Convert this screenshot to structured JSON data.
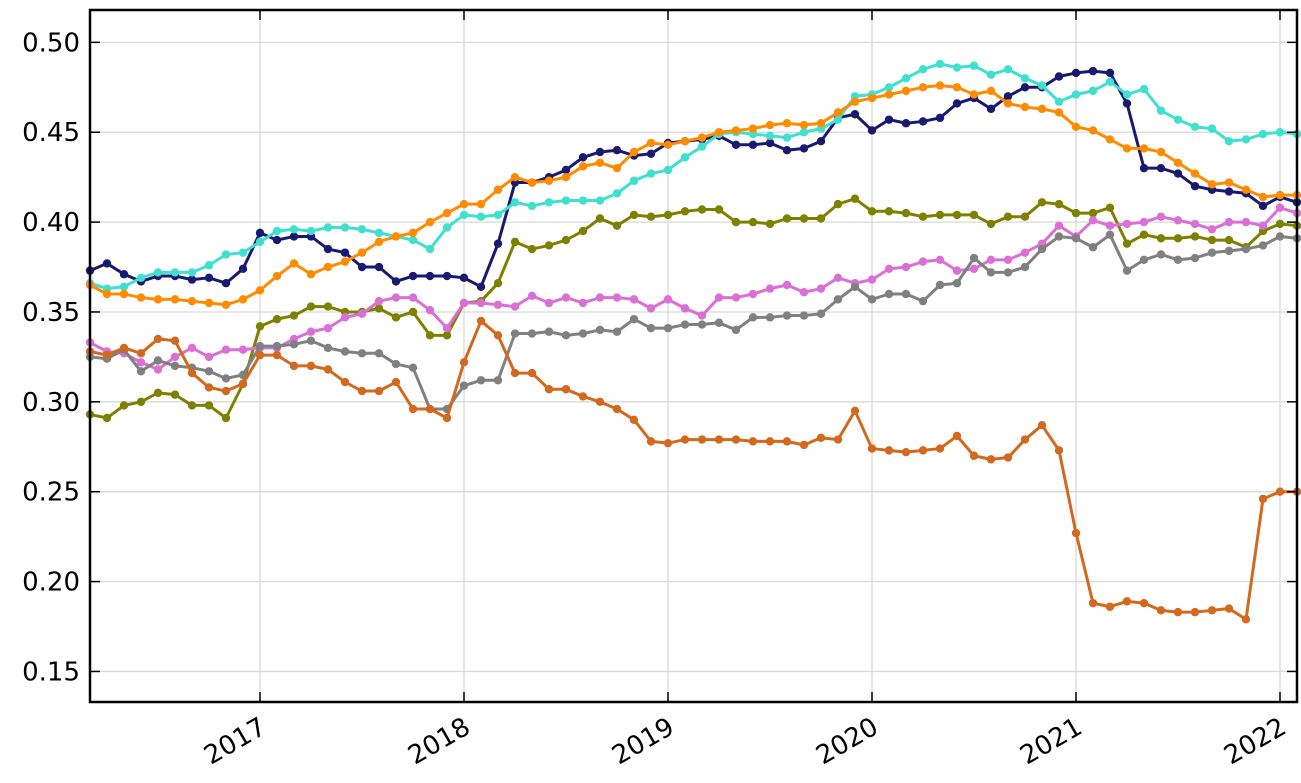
{
  "chart_data": {
    "type": "line",
    "x": [
      "2016-03",
      "2016-04",
      "2016-05",
      "2016-06",
      "2016-07",
      "2016-08",
      "2016-09",
      "2016-10",
      "2016-11",
      "2016-12",
      "2017-01",
      "2017-02",
      "2017-03",
      "2017-04",
      "2017-05",
      "2017-06",
      "2017-07",
      "2017-08",
      "2017-09",
      "2017-10",
      "2017-11",
      "2017-12",
      "2018-01",
      "2018-02",
      "2018-03",
      "2018-04",
      "2018-05",
      "2018-06",
      "2018-07",
      "2018-08",
      "2018-09",
      "2018-10",
      "2018-11",
      "2018-12",
      "2019-01",
      "2019-02",
      "2019-03",
      "2019-04",
      "2019-05",
      "2019-06",
      "2019-07",
      "2019-08",
      "2019-09",
      "2019-10",
      "2019-11",
      "2019-12",
      "2020-01",
      "2020-02",
      "2020-03",
      "2020-04",
      "2020-05",
      "2020-06",
      "2020-07",
      "2020-08",
      "2020-09",
      "2020-10",
      "2020-11",
      "2020-12",
      "2021-01",
      "2021-02",
      "2021-03",
      "2021-04",
      "2021-05",
      "2021-06",
      "2021-07",
      "2021-08",
      "2021-09",
      "2021-10",
      "2021-11",
      "2021-12",
      "2022-01",
      "2022-02"
    ],
    "xlim": [
      "2016-03",
      "2022-02"
    ],
    "xticks": [
      {
        "value": "2017-01",
        "label": "2017"
      },
      {
        "value": "2018-01",
        "label": "2018"
      },
      {
        "value": "2019-01",
        "label": "2019"
      },
      {
        "value": "2020-01",
        "label": "2020"
      },
      {
        "value": "2021-01",
        "label": "2021"
      },
      {
        "value": "2022-01",
        "label": "2022"
      }
    ],
    "ylim": [
      0.133,
      0.518
    ],
    "yticks": [
      {
        "value": 0.15,
        "label": "0.15"
      },
      {
        "value": 0.2,
        "label": "0.20"
      },
      {
        "value": 0.25,
        "label": "0.25"
      },
      {
        "value": 0.3,
        "label": "0.30"
      },
      {
        "value": 0.35,
        "label": "0.35"
      },
      {
        "value": 0.4,
        "label": "0.40"
      },
      {
        "value": 0.45,
        "label": "0.45"
      },
      {
        "value": 0.5,
        "label": "0.50"
      }
    ],
    "grid": true,
    "series": [
      {
        "color": "#191970",
        "values": [
          0.373,
          0.377,
          0.371,
          0.367,
          0.37,
          0.37,
          0.368,
          0.369,
          0.366,
          0.374,
          0.394,
          0.39,
          0.392,
          0.392,
          0.385,
          0.383,
          0.375,
          0.375,
          0.367,
          0.37,
          0.37,
          0.37,
          0.369,
          0.364,
          0.388,
          0.422,
          0.422,
          0.425,
          0.429,
          0.436,
          0.439,
          0.44,
          0.437,
          0.438,
          0.444,
          0.445,
          0.446,
          0.448,
          0.443,
          0.443,
          0.444,
          0.44,
          0.441,
          0.445,
          0.458,
          0.46,
          0.451,
          0.457,
          0.455,
          0.456,
          0.458,
          0.466,
          0.469,
          0.463,
          0.47,
          0.475,
          0.475,
          0.481,
          0.483,
          0.484,
          0.483,
          0.466,
          0.43,
          0.43,
          0.427,
          0.42,
          0.418,
          0.417,
          0.416,
          0.409,
          0.414,
          0.411
        ]
      },
      {
        "color": "#40e0d0",
        "values": [
          0.366,
          0.363,
          0.364,
          0.369,
          0.372,
          0.372,
          0.372,
          0.376,
          0.382,
          0.383,
          0.389,
          0.395,
          0.396,
          0.395,
          0.397,
          0.397,
          0.396,
          0.394,
          0.392,
          0.39,
          0.385,
          0.397,
          0.404,
          0.403,
          0.404,
          0.411,
          0.409,
          0.411,
          0.412,
          0.412,
          0.412,
          0.416,
          0.423,
          0.427,
          0.429,
          0.436,
          0.442,
          0.449,
          0.45,
          0.449,
          0.448,
          0.447,
          0.45,
          0.452,
          0.457,
          0.47,
          0.471,
          0.475,
          0.48,
          0.485,
          0.488,
          0.486,
          0.487,
          0.482,
          0.485,
          0.48,
          0.476,
          0.467,
          0.471,
          0.473,
          0.478,
          0.471,
          0.474,
          0.462,
          0.457,
          0.453,
          0.452,
          0.445,
          0.446,
          0.449,
          0.45,
          0.449
        ]
      },
      {
        "color": "#ff8c00",
        "values": [
          0.365,
          0.36,
          0.36,
          0.358,
          0.357,
          0.357,
          0.356,
          0.355,
          0.354,
          0.357,
          0.362,
          0.37,
          0.377,
          0.371,
          0.375,
          0.378,
          0.383,
          0.389,
          0.392,
          0.394,
          0.4,
          0.405,
          0.41,
          0.41,
          0.418,
          0.425,
          0.422,
          0.423,
          0.425,
          0.431,
          0.433,
          0.43,
          0.439,
          0.444,
          0.443,
          0.445,
          0.447,
          0.45,
          0.451,
          0.452,
          0.454,
          0.455,
          0.454,
          0.455,
          0.461,
          0.467,
          0.469,
          0.471,
          0.473,
          0.475,
          0.476,
          0.475,
          0.471,
          0.473,
          0.466,
          0.464,
          0.463,
          0.461,
          0.453,
          0.451,
          0.446,
          0.441,
          0.441,
          0.439,
          0.433,
          0.427,
          0.421,
          0.422,
          0.418,
          0.414,
          0.415,
          0.415
        ]
      },
      {
        "color": "#808000",
        "values": [
          0.293,
          0.291,
          0.298,
          0.3,
          0.305,
          0.304,
          0.298,
          0.298,
          0.291,
          0.31,
          0.342,
          0.346,
          0.348,
          0.353,
          0.353,
          0.35,
          0.35,
          0.352,
          0.347,
          0.35,
          0.337,
          0.337,
          0.355,
          0.356,
          0.366,
          0.389,
          0.385,
          0.387,
          0.39,
          0.395,
          0.402,
          0.398,
          0.404,
          0.403,
          0.404,
          0.406,
          0.407,
          0.407,
          0.4,
          0.4,
          0.399,
          0.402,
          0.402,
          0.402,
          0.41,
          0.413,
          0.406,
          0.406,
          0.405,
          0.403,
          0.404,
          0.404,
          0.404,
          0.399,
          0.403,
          0.403,
          0.411,
          0.41,
          0.405,
          0.405,
          0.408,
          0.388,
          0.393,
          0.391,
          0.391,
          0.392,
          0.39,
          0.39,
          0.386,
          0.395,
          0.399,
          0.398
        ]
      },
      {
        "color": "#da70d6",
        "values": [
          0.333,
          0.328,
          0.327,
          0.322,
          0.318,
          0.325,
          0.33,
          0.325,
          0.329,
          0.329,
          0.33,
          0.33,
          0.335,
          0.339,
          0.341,
          0.347,
          0.349,
          0.356,
          0.358,
          0.358,
          0.351,
          0.341,
          0.355,
          0.355,
          0.354,
          0.353,
          0.359,
          0.355,
          0.358,
          0.355,
          0.358,
          0.358,
          0.357,
          0.352,
          0.357,
          0.352,
          0.348,
          0.358,
          0.358,
          0.36,
          0.363,
          0.365,
          0.361,
          0.363,
          0.369,
          0.366,
          0.368,
          0.374,
          0.375,
          0.378,
          0.379,
          0.373,
          0.374,
          0.379,
          0.379,
          0.383,
          0.388,
          0.398,
          0.392,
          0.401,
          0.398,
          0.399,
          0.4,
          0.403,
          0.401,
          0.399,
          0.396,
          0.4,
          0.4,
          0.398,
          0.408,
          0.405
        ]
      },
      {
        "color": "#808080",
        "values": [
          0.325,
          0.324,
          0.329,
          0.317,
          0.323,
          0.32,
          0.319,
          0.317,
          0.313,
          0.315,
          0.331,
          0.331,
          0.332,
          0.334,
          0.33,
          0.328,
          0.327,
          0.327,
          0.321,
          0.319,
          0.296,
          0.296,
          0.309,
          0.312,
          0.312,
          0.338,
          0.338,
          0.339,
          0.337,
          0.338,
          0.34,
          0.339,
          0.346,
          0.341,
          0.341,
          0.343,
          0.343,
          0.344,
          0.34,
          0.347,
          0.347,
          0.348,
          0.348,
          0.349,
          0.357,
          0.364,
          0.357,
          0.36,
          0.36,
          0.356,
          0.365,
          0.366,
          0.38,
          0.372,
          0.372,
          0.375,
          0.385,
          0.392,
          0.391,
          0.386,
          0.393,
          0.373,
          0.379,
          0.382,
          0.379,
          0.38,
          0.383,
          0.384,
          0.385,
          0.387,
          0.392,
          0.391
        ]
      },
      {
        "color": "#d2691e",
        "values": [
          0.328,
          0.326,
          0.33,
          0.327,
          0.335,
          0.334,
          0.316,
          0.308,
          0.306,
          0.31,
          0.326,
          0.326,
          0.32,
          0.32,
          0.318,
          0.311,
          0.306,
          0.306,
          0.311,
          0.296,
          0.296,
          0.291,
          0.322,
          0.345,
          0.337,
          0.316,
          0.316,
          0.307,
          0.307,
          0.303,
          0.3,
          0.296,
          0.29,
          0.278,
          0.277,
          0.279,
          0.279,
          0.279,
          0.279,
          0.278,
          0.278,
          0.278,
          0.276,
          0.28,
          0.279,
          0.295,
          0.274,
          0.273,
          0.272,
          0.273,
          0.274,
          0.281,
          0.27,
          0.268,
          0.269,
          0.279,
          0.287,
          0.273,
          0.227,
          0.188,
          0.186,
          0.189,
          0.188,
          0.184,
          0.183,
          0.183,
          0.184,
          0.185,
          0.179,
          0.246,
          0.25,
          0.25
        ]
      }
    ]
  }
}
